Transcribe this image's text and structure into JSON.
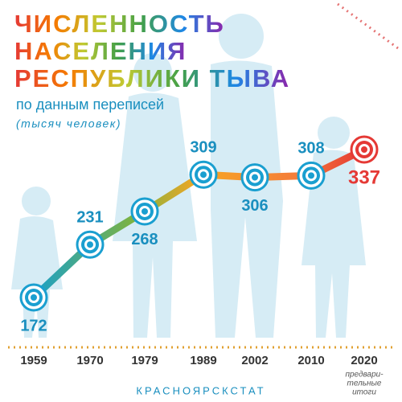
{
  "chart_data": {
    "type": "line",
    "title": [
      "ЧИСЛЕННОСТЬ",
      "НАСЕЛЕНИЯ",
      "РЕСПУБЛИКИ ТЫВА"
    ],
    "subtitle": "по данным переписей",
    "unit": "(тысяч человек)",
    "categories": [
      "1959",
      "1970",
      "1979",
      "1989",
      "2002",
      "2010",
      "2020"
    ],
    "values": [
      172,
      231,
      268,
      309,
      306,
      308,
      337
    ],
    "note": [
      "предвари-",
      "тельные",
      "итоги"
    ],
    "source": "КРАСНОЯРСКСТАТ",
    "marker_color": "#1a9fd0",
    "highlight_color": "#e53935",
    "label_color": "#1a8fbf"
  }
}
